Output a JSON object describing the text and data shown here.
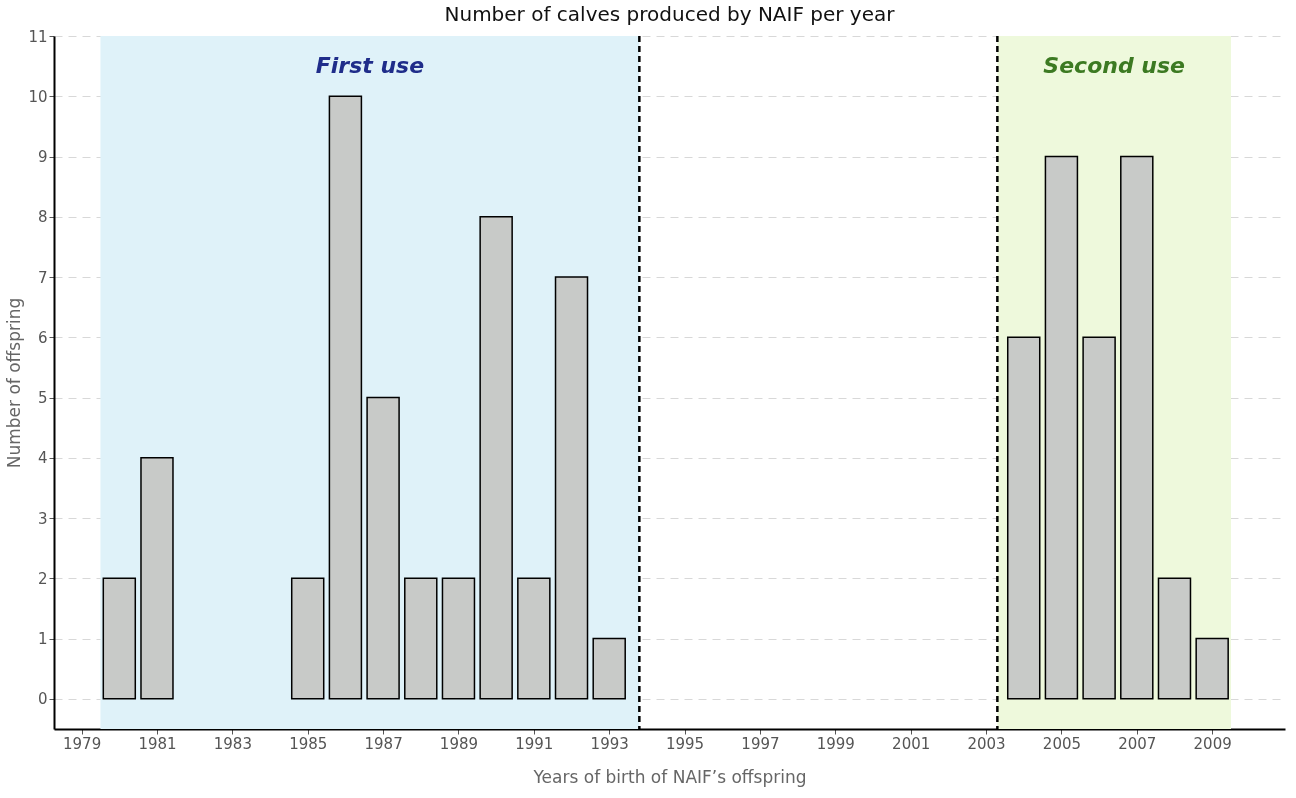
{
  "chart_data": {
    "type": "bar",
    "title": "Number of calves produced by NAIF per year",
    "xlabel": "Years of birth of NAIF’s offspring",
    "ylabel": "Number of offspring",
    "x": [
      1980,
      1981,
      1985,
      1986,
      1987,
      1988,
      1989,
      1990,
      1991,
      1992,
      1993,
      2004,
      2005,
      2006,
      2007,
      2008,
      2009
    ],
    "values": [
      2,
      4,
      2,
      10,
      5,
      2,
      2,
      8,
      2,
      7,
      1,
      6,
      9,
      6,
      9,
      2,
      1
    ],
    "color": "#c8cac8",
    "xlim": [
      1978.4,
      2010.8
    ],
    "xticks": [
      1979,
      1981,
      1983,
      1985,
      1987,
      1989,
      1991,
      1993,
      1995,
      1997,
      1999,
      2001,
      2003,
      2005,
      2007,
      2009
    ],
    "ylim": [
      -0.5,
      11
    ],
    "yticks": [
      0,
      1,
      2,
      3,
      4,
      5,
      6,
      7,
      8,
      9,
      10,
      11
    ],
    "grid": "y",
    "bands": [
      {
        "axis": "x",
        "from": 1979.5,
        "to": 1993.8,
        "label": "First use",
        "color": "#dff2f9"
      },
      {
        "axis": "x",
        "from": 2003.3,
        "to": 2009.5,
        "label": "Second use",
        "color": "#eef9dc"
      }
    ],
    "ref_lines": [
      {
        "axis": "x",
        "value": 1993.8,
        "line_style": "dashed",
        "color": "#000000"
      },
      {
        "axis": "x",
        "value": 2003.3,
        "line_style": "dashed",
        "color": "#000000"
      }
    ]
  }
}
